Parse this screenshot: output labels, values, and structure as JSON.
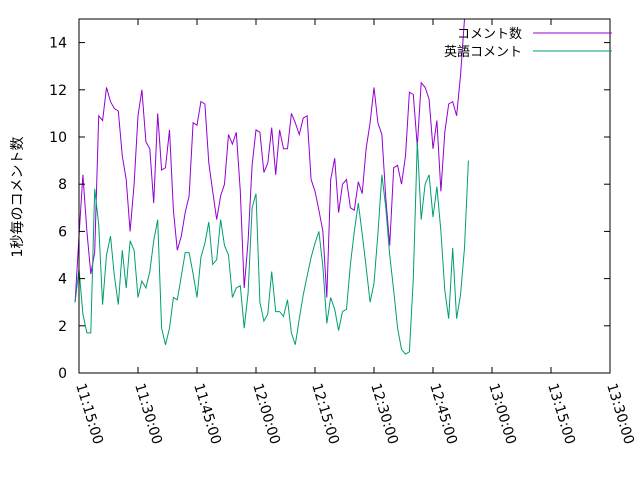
{
  "chart_data": {
    "type": "line",
    "ylabel": "1秒毎のコメント数",
    "xlabel": "",
    "ylim": [
      0,
      15
    ],
    "xlim": [
      "11:15:00",
      "13:30:00"
    ],
    "x_ticks": [
      "11:15:00",
      "11:30:00",
      "11:45:00",
      "12:00:00",
      "12:15:00",
      "12:30:00",
      "12:45:00",
      "13:00:00",
      "13:15:00",
      "13:30:00"
    ],
    "y_ticks": [
      0,
      2,
      4,
      6,
      8,
      10,
      12,
      14
    ],
    "grid": false,
    "legend_position": "top-right",
    "x_start": "11:14:00",
    "x_step_seconds": 60,
    "series": [
      {
        "name": "コメント数",
        "color": "#9400d3",
        "values": [
          3.0,
          5.8,
          8.4,
          6.0,
          4.2,
          5.1,
          10.9,
          10.7,
          12.1,
          11.5,
          11.2,
          11.1,
          9.2,
          8.2,
          6.0,
          8.0,
          10.9,
          12.0,
          9.8,
          9.5,
          7.2,
          11.0,
          8.6,
          8.7,
          10.3,
          6.9,
          5.2,
          5.8,
          6.8,
          7.5,
          10.6,
          10.5,
          11.5,
          11.4,
          8.9,
          7.7,
          6.5,
          7.5,
          8.0,
          10.1,
          9.7,
          10.2,
          7.7,
          3.6,
          5.6,
          8.8,
          10.3,
          10.2,
          8.5,
          8.9,
          10.4,
          8.4,
          10.3,
          9.5,
          9.5,
          11.0,
          10.6,
          10.1,
          10.8,
          10.9,
          8.2,
          7.7,
          6.9,
          6.0,
          3.2,
          8.2,
          9.1,
          6.8,
          8.0,
          8.2,
          7.0,
          6.9,
          8.1,
          7.6,
          9.5,
          10.6,
          12.1,
          10.6,
          10.1,
          7.4,
          5.4,
          8.7,
          8.8,
          8.0,
          9.2,
          11.9,
          11.8,
          9.6,
          12.3,
          12.1,
          11.6,
          9.5,
          10.7,
          7.7,
          10.2,
          11.4,
          11.5,
          10.9,
          12.6,
          15.0
        ]
      },
      {
        "name": "英語コメント",
        "color": "#009e73",
        "values": [
          3.0,
          4.4,
          2.5,
          1.7,
          1.7,
          7.8,
          6.3,
          2.9,
          5.0,
          5.8,
          4.1,
          2.9,
          5.2,
          3.6,
          5.6,
          5.2,
          3.2,
          3.9,
          3.6,
          4.3,
          5.6,
          6.5,
          1.9,
          1.2,
          1.9,
          3.2,
          3.1,
          4.1,
          5.1,
          5.1,
          4.2,
          3.2,
          4.9,
          5.5,
          6.4,
          4.6,
          4.8,
          6.5,
          5.4,
          5.0,
          3.2,
          3.6,
          3.7,
          1.9,
          3.4,
          7.0,
          7.6,
          3.0,
          2.2,
          2.5,
          4.3,
          2.6,
          2.6,
          2.4,
          3.1,
          1.7,
          1.2,
          2.3,
          3.3,
          4.1,
          4.9,
          5.5,
          6.0,
          4.5,
          2.1,
          3.2,
          2.7,
          1.8,
          2.6,
          2.7,
          4.6,
          6.0,
          7.2,
          5.9,
          4.5,
          3.0,
          3.8,
          5.9,
          8.4,
          7.0,
          5.0,
          3.5,
          1.9,
          1.0,
          0.8,
          0.9,
          4.0,
          9.8,
          6.5,
          8.0,
          8.4,
          6.6,
          7.9,
          6.0,
          3.5,
          2.3,
          5.3,
          2.3,
          3.3,
          5.3,
          9.0
        ]
      }
    ]
  }
}
